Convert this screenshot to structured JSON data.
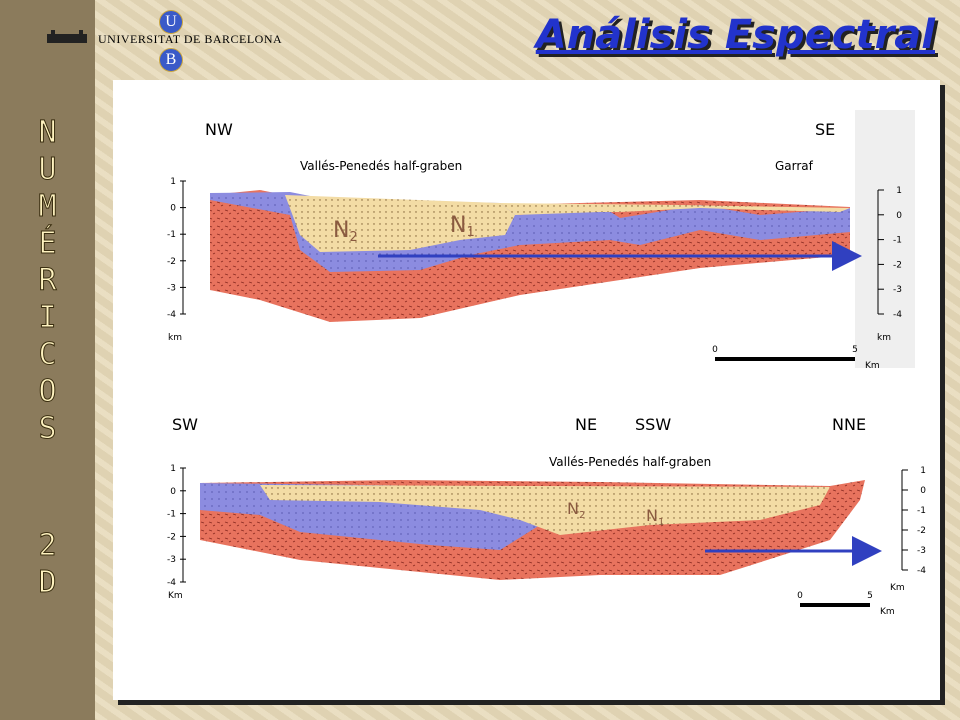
{
  "header": {
    "university": "UNIVERSITAT DE BARCELONA",
    "logo_top": "U",
    "logo_bottom": "B"
  },
  "title": "Análisis Espectral",
  "sidebar": {
    "letters": [
      "N",
      "U",
      "M",
      "É",
      "R",
      "I",
      "C",
      "O",
      "S",
      "2",
      "D"
    ]
  },
  "sections": [
    {
      "directions": [
        "NW",
        "SE"
      ],
      "labels": [
        "Vallés-Penedés half-graben",
        "Garraf"
      ],
      "units": [
        {
          "name": "N",
          "sub": "2"
        },
        {
          "name": "N",
          "sub": "1"
        }
      ],
      "left_ticks": [
        "1",
        "0",
        "-1",
        "-2",
        "-3",
        "-4"
      ],
      "left_unit": "km",
      "right_ticks": [
        "1",
        "0",
        "-1",
        "-2",
        "-3",
        "-4"
      ],
      "right_unit": "km",
      "scale": {
        "start": "0",
        "end": "5",
        "unit": "Km"
      }
    },
    {
      "directions": [
        "SW",
        "NE",
        "SSW",
        "NNE"
      ],
      "labels": [
        "Vallés-Penedés half-graben"
      ],
      "units": [
        {
          "name": "N",
          "sub": "2"
        },
        {
          "name": "N",
          "sub": "1"
        }
      ],
      "left_ticks": [
        "1",
        "0",
        "-1",
        "-2",
        "-3",
        "-4"
      ],
      "left_unit": "Km",
      "right_ticks": [
        "1",
        "0",
        "-1",
        "-2",
        "-3",
        "-4"
      ],
      "right_unit": "Km",
      "scale": {
        "start": "0",
        "end": "5",
        "unit": "Km"
      }
    }
  ]
}
